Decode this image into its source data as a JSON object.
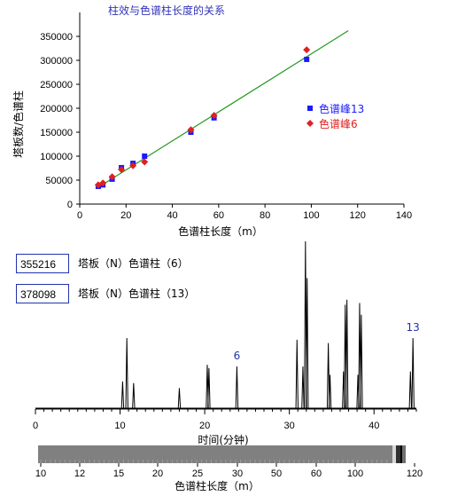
{
  "chart_data": [
    {
      "type": "scatter",
      "title": "柱效与色谱柱长度的关系",
      "xlabel": "色谱柱长度（m）",
      "ylabel": "塔板数/色谱柱",
      "xlim": [
        0,
        140
      ],
      "ylim": [
        0,
        400000
      ],
      "xticks": [
        0,
        20,
        40,
        60,
        80,
        100,
        120,
        140
      ],
      "yticks": [
        0,
        50000,
        100000,
        150000,
        200000,
        250000,
        300000,
        350000
      ],
      "ytick_labels": [
        "0",
        "50000",
        "100000",
        "150000",
        "200000",
        "250000",
        "300000",
        "350000"
      ],
      "grid": false,
      "legend_position": "right",
      "series": [
        {
          "name": "色谱峰13",
          "color": "#1a1aff",
          "marker": "square",
          "x": [
            8,
            10,
            14,
            18,
            23,
            28,
            48,
            58,
            98
          ],
          "y": [
            37000,
            40000,
            52000,
            76000,
            85000,
            100000,
            150000,
            180000,
            302000
          ]
        },
        {
          "name": "色谱峰6",
          "color": "#e02020",
          "marker": "diamond",
          "x": [
            8,
            10,
            14,
            18,
            23,
            28,
            48,
            58,
            98
          ],
          "y": [
            40000,
            44000,
            57000,
            72000,
            80000,
            88000,
            155000,
            185000,
            322000
          ]
        }
      ],
      "fit_line": {
        "color": "#229922",
        "x": [
          8,
          116
        ],
        "y": [
          35000,
          362000
        ]
      }
    },
    {
      "type": "line",
      "xlabel": "时间(分钟)",
      "xlim": [
        0,
        45
      ],
      "xticks": [
        0,
        10,
        20,
        30,
        40
      ],
      "peaks": [
        {
          "t": 10.3,
          "h": 0.16
        },
        {
          "t": 10.8,
          "h": 0.42
        },
        {
          "t": 11.6,
          "h": 0.15
        },
        {
          "t": 17.0,
          "h": 0.12
        },
        {
          "t": 20.3,
          "h": 0.26
        },
        {
          "t": 20.5,
          "h": 0.24
        },
        {
          "t": 23.8,
          "h": 0.25
        },
        {
          "t": 30.9,
          "h": 0.41
        },
        {
          "t": 31.6,
          "h": 0.25
        },
        {
          "t": 31.9,
          "h": 1.0
        },
        {
          "t": 32.1,
          "h": 0.78
        },
        {
          "t": 34.6,
          "h": 0.39
        },
        {
          "t": 34.8,
          "h": 0.2
        },
        {
          "t": 36.4,
          "h": 0.22
        },
        {
          "t": 36.6,
          "h": 0.62
        },
        {
          "t": 36.8,
          "h": 0.65
        },
        {
          "t": 38.1,
          "h": 0.2
        },
        {
          "t": 38.3,
          "h": 0.63
        },
        {
          "t": 38.5,
          "h": 0.56
        },
        {
          "t": 44.3,
          "h": 0.22
        },
        {
          "t": 44.6,
          "h": 0.42
        }
      ],
      "peak_labels": [
        {
          "t": 23.8,
          "h": 0.25,
          "text": "6"
        },
        {
          "t": 44.6,
          "h": 0.42,
          "text": "13"
        }
      ],
      "annotations": [
        {
          "value": "355216",
          "text": "塔板（N）色谱柱（6）"
        },
        {
          "value": "378098",
          "text": "塔板（N）色谱柱（13）"
        }
      ]
    },
    {
      "type": "bar",
      "xlabel": "色谱柱长度（m）",
      "tick_labels": [
        "10",
        "12",
        "15",
        "20",
        "25",
        "30",
        "50",
        "60",
        "100",
        "120"
      ],
      "bar_color": "#808080"
    }
  ]
}
